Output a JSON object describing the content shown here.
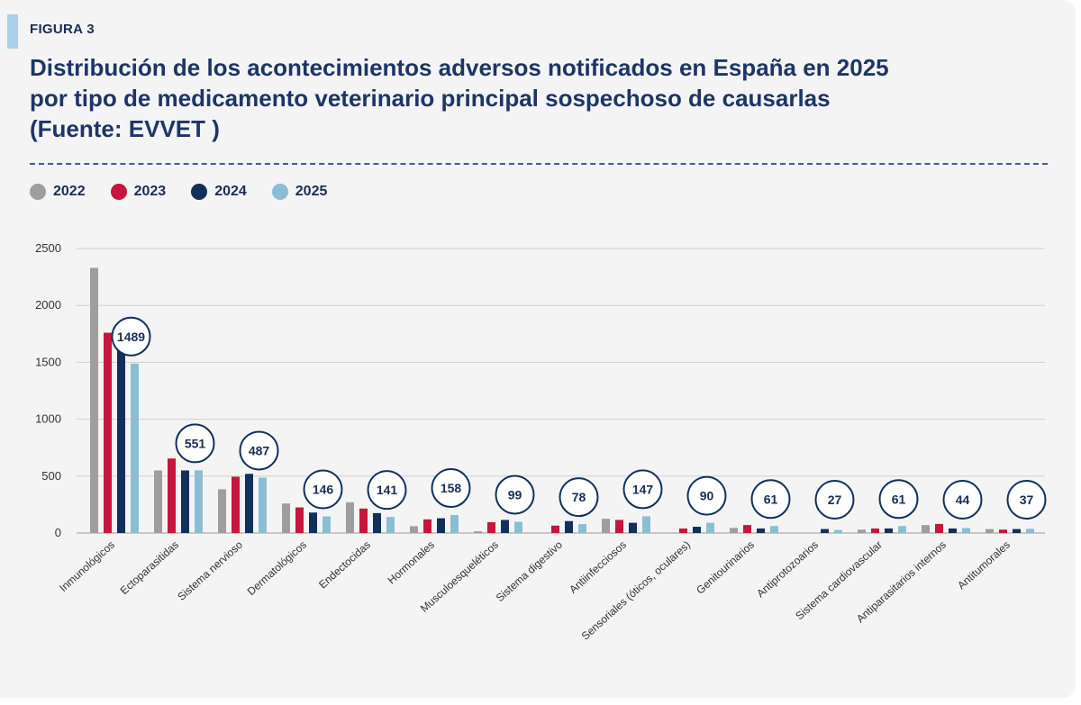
{
  "figure_label": "FIGURA 3",
  "title_lines": [
    "Distribución de los acontecimientos adversos notificados en España en 2025",
    "por tipo de medicamento veterinario principal sospechoso de causarlas",
    "(Fuente: EVVET )"
  ],
  "colors": {
    "2022": "#9e9e9e",
    "2023": "#c8153c",
    "2024": "#12305a",
    "2025": "#8bbdd4",
    "title": "#1e3566",
    "grid": "#cfcfcf"
  },
  "chart_data": {
    "type": "bar",
    "title": "Distribución de los acontecimientos adversos notificados en España en 2025 por tipo de medicamento veterinario principal sospechoso de causarlas (Fuente: EVVET )",
    "xlabel": "",
    "ylabel": "",
    "ylim": [
      0,
      2500
    ],
    "yticks": [
      0,
      500,
      1000,
      1500,
      2000,
      2500
    ],
    "grid": true,
    "legend_position": "top-left",
    "categories": [
      "Inmunológicos",
      "Ectoparasitidas",
      "Sistema nervioso",
      "Dermatológicos",
      "Endectocidas",
      "Hormonales",
      "Musculoesqueléticos",
      "Sistema digestivo",
      "Antiinfecciosos",
      "Sensoriales (óticos, oculares)",
      "Genitourinarios",
      "Antiprotozoarios",
      "Sistema cardiovascular",
      "Antiparasitarios internos",
      "Antitumorales"
    ],
    "series": [
      {
        "name": "2022",
        "values": [
          2330,
          550,
          385,
          260,
          270,
          60,
          15,
          0,
          125,
          0,
          45,
          0,
          30,
          70,
          35
        ]
      },
      {
        "name": "2023",
        "values": [
          1760,
          655,
          495,
          225,
          215,
          120,
          95,
          65,
          115,
          40,
          70,
          0,
          40,
          80,
          30
        ]
      },
      {
        "name": "2024",
        "values": [
          1700,
          550,
          520,
          180,
          175,
          130,
          115,
          105,
          90,
          55,
          40,
          35,
          40,
          40,
          35
        ]
      },
      {
        "name": "2025",
        "values": [
          1489,
          551,
          487,
          146,
          141,
          158,
          99,
          78,
          147,
          90,
          61,
          27,
          61,
          44,
          37
        ]
      }
    ],
    "callouts": [
      "1489",
      "551",
      "487",
      "146",
      "141",
      "158",
      "99",
      "78",
      "147",
      "90",
      "61",
      "27",
      "61",
      "44",
      "37"
    ]
  }
}
